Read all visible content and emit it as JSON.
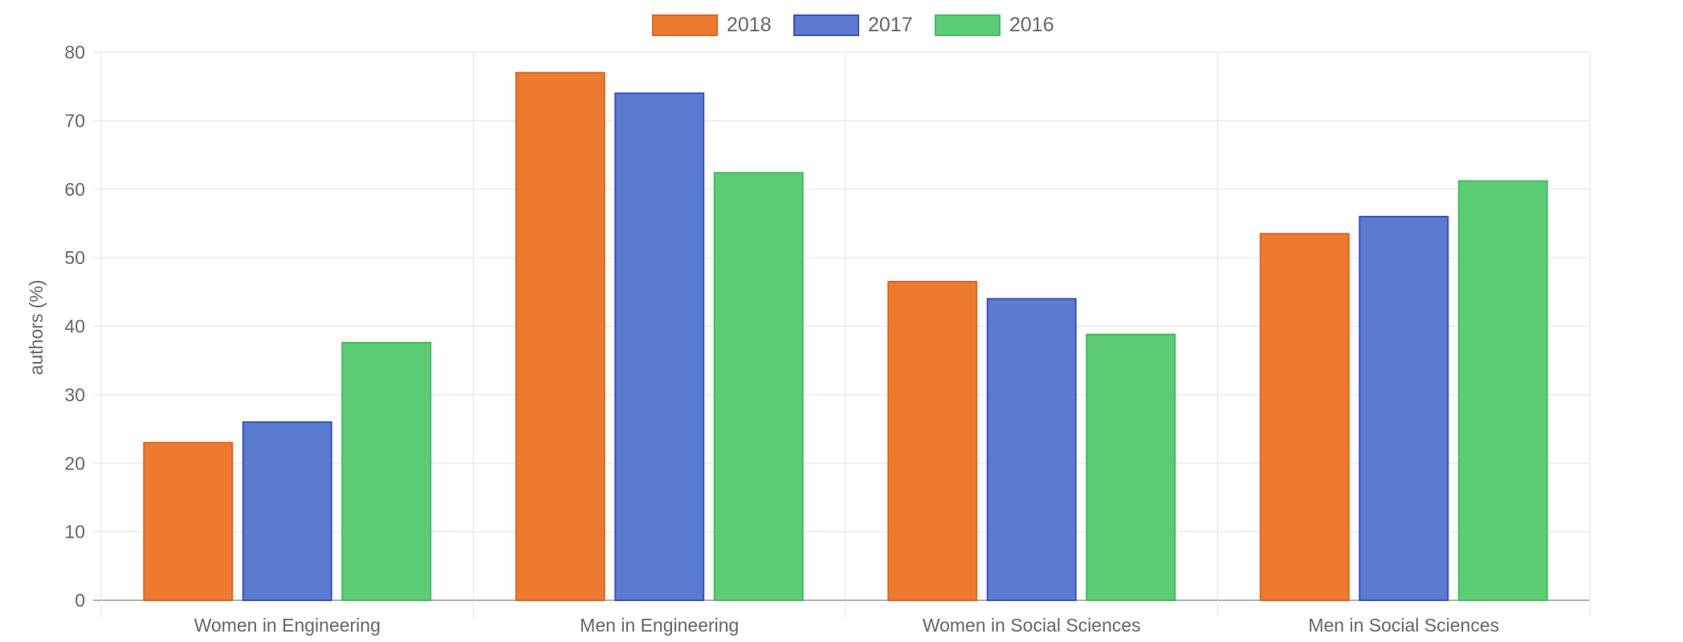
{
  "chart_data": {
    "type": "bar",
    "categories": [
      "Women in Engineering",
      "Men in Engineering",
      "Women in Social Sciences",
      "Men in Social Sciences"
    ],
    "series": [
      {
        "name": "2018",
        "values": [
          23,
          77,
          46.5,
          53.5
        ],
        "color": "#ee7a30",
        "border": "#e0661a"
      },
      {
        "name": "2017",
        "values": [
          26,
          74,
          44,
          56
        ],
        "color": "#5a7bd0",
        "border": "#3853c4"
      },
      {
        "name": "2016",
        "values": [
          37.6,
          62.4,
          38.8,
          61.2
        ],
        "color": "#5ccc75",
        "border": "#43bd5e"
      }
    ],
    "ylabel": "authors (%)",
    "ylim": [
      0,
      80
    ],
    "yticks": [
      0,
      10,
      20,
      30,
      40,
      50,
      60,
      70,
      80
    ],
    "grid": true,
    "legend_position": "top-center"
  }
}
